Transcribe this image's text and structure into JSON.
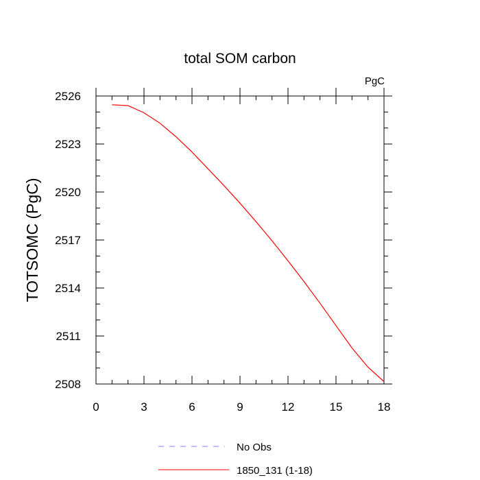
{
  "chart_data": {
    "type": "line",
    "title": "total SOM carbon",
    "units_label": "PgC",
    "ylabel": "TOTSOMC  (PgC)",
    "xlabel": "",
    "xlim": [
      0,
      18
    ],
    "ylim": [
      2508,
      2526
    ],
    "x_ticks": [
      0,
      3,
      6,
      9,
      12,
      15,
      18
    ],
    "x_tick_labels": [
      "0",
      "3",
      "6",
      "9",
      "12",
      "15",
      "18"
    ],
    "y_ticks": [
      2508,
      2511,
      2514,
      2517,
      2520,
      2523,
      2526
    ],
    "y_tick_labels": [
      "2508",
      "2511",
      "2514",
      "2517",
      "2520",
      "2523",
      "2526"
    ],
    "grid": false,
    "legend_position": "bottom",
    "series": [
      {
        "name": "1850_131 (1-18)",
        "color": "#ff0000",
        "style": "solid",
        "x": [
          1,
          2,
          3,
          4,
          5,
          6,
          7,
          8,
          9,
          10,
          11,
          12,
          13,
          14,
          15,
          16,
          17,
          18
        ],
        "y": [
          2525.45,
          2525.4,
          2524.95,
          2524.3,
          2523.45,
          2522.5,
          2521.45,
          2520.4,
          2519.3,
          2518.15,
          2516.95,
          2515.7,
          2514.4,
          2513.05,
          2511.65,
          2510.25,
          2509.05,
          2508.15
        ]
      }
    ],
    "legend": [
      {
        "label": "No Obs",
        "color": "#8080ff",
        "style": "dashed"
      },
      {
        "label": "1850_131 (1-18)",
        "color": "#ff0000",
        "style": "solid"
      }
    ]
  }
}
